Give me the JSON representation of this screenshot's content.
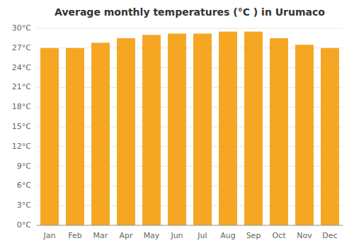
{
  "chart_data": {
    "type": "bar",
    "title": "Average monthly temperatures (°C ) in Urumaco",
    "categories": [
      "Jan",
      "Feb",
      "Mar",
      "Apr",
      "May",
      "Jun",
      "Jul",
      "Aug",
      "Sep",
      "Oct",
      "Nov",
      "Dec"
    ],
    "values": [
      27.0,
      27.0,
      27.8,
      28.5,
      29.0,
      29.2,
      29.2,
      29.5,
      29.5,
      28.5,
      27.5,
      27.0
    ],
    "color": "#F5A623",
    "ylim": [
      0,
      30
    ],
    "yticks": [
      {
        "value": 0,
        "label": "0°C"
      },
      {
        "value": 3,
        "label": "3°C"
      },
      {
        "value": 6,
        "label": "6°C"
      },
      {
        "value": 9,
        "label": "9°C"
      },
      {
        "value": 12,
        "label": "12°C"
      },
      {
        "value": 15,
        "label": "15°C"
      },
      {
        "value": 18,
        "label": "18°C"
      },
      {
        "value": 21,
        "label": "21°C"
      },
      {
        "value": 24,
        "label": "24°C"
      },
      {
        "value": 27,
        "label": "27°C"
      },
      {
        "value": 30,
        "label": "30°C"
      }
    ],
    "grid": true
  }
}
